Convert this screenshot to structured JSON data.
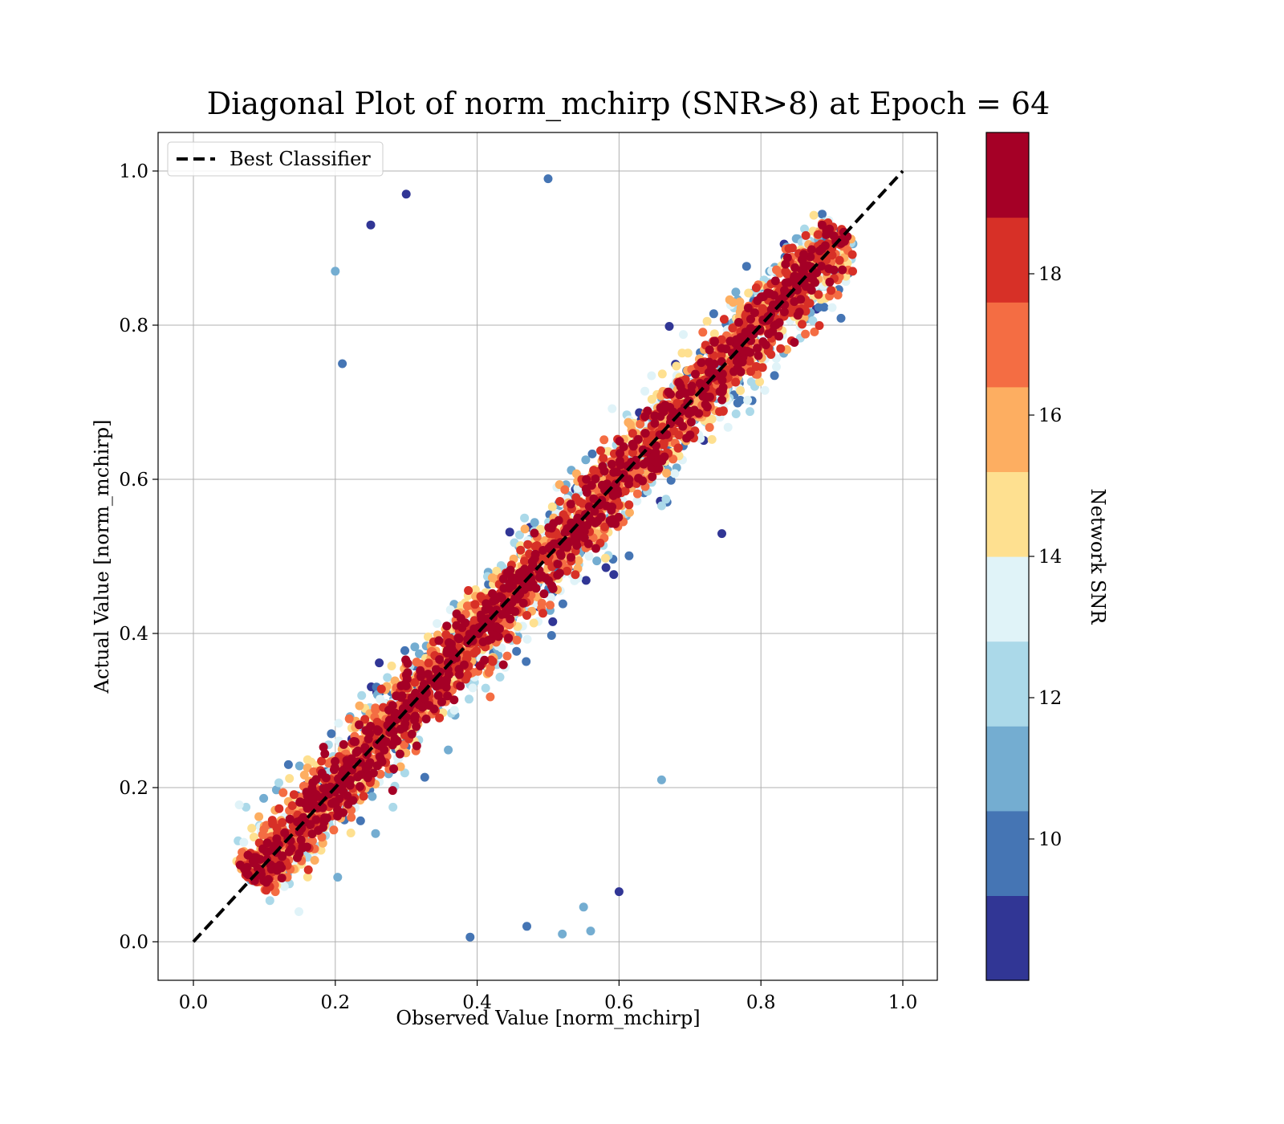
{
  "chart_data": {
    "type": "scatter",
    "title": "Diagonal Plot of norm_mchirp (SNR>8) at Epoch = 64",
    "xlabel": "Observed Value [norm_mchirp]",
    "ylabel": "Actual Value [norm_mchirp]",
    "xlim": [
      -0.05,
      1.05
    ],
    "ylim": [
      -0.05,
      1.05
    ],
    "xticks": [
      "0.0",
      "0.2",
      "0.4",
      "0.6",
      "0.8",
      "1.0"
    ],
    "yticks": [
      "0.0",
      "0.2",
      "0.4",
      "0.6",
      "0.8",
      "1.0"
    ],
    "grid": true,
    "legend": {
      "placement": "upper-left",
      "entries": [
        "Best Classifier"
      ]
    },
    "reference_line": {
      "name": "Best Classifier",
      "x": [
        0.0,
        1.0
      ],
      "y": [
        0.0,
        1.0
      ],
      "style": "dashed",
      "color": "#000000"
    },
    "colorbar": {
      "label": "Network SNR",
      "range": [
        8,
        20
      ],
      "tick_values": [
        10,
        12,
        14,
        16,
        18
      ],
      "ticks": [
        "10",
        "12",
        "14",
        "16",
        "18"
      ],
      "colors": [
        "#313695",
        "#4575b4",
        "#74add1",
        "#abd9e9",
        "#e0f3f8",
        "#fee090",
        "#fdae61",
        "#f46d43",
        "#d73027",
        "#a50026"
      ]
    },
    "scatter_summary": {
      "x_range": [
        0.05,
        0.93
      ],
      "y_range": [
        0.0,
        1.0
      ],
      "trend": "points cluster along y = x; high-SNR points (dark red) tightly on the diagonal, low-SNR points (blue) widely spread",
      "outliers": [
        {
          "x": 0.2,
          "y": 0.87
        },
        {
          "x": 0.25,
          "y": 0.93
        },
        {
          "x": 0.3,
          "y": 0.97
        },
        {
          "x": 0.21,
          "y": 0.75
        },
        {
          "x": 0.5,
          "y": 0.99
        },
        {
          "x": 0.66,
          "y": 0.21
        },
        {
          "x": 0.6,
          "y": 0.065
        },
        {
          "x": 0.55,
          "y": 0.045
        },
        {
          "x": 0.47,
          "y": 0.02
        },
        {
          "x": 0.56,
          "y": 0.014
        },
        {
          "x": 0.52,
          "y": 0.01
        },
        {
          "x": 0.39,
          "y": 0.006
        }
      ]
    }
  }
}
